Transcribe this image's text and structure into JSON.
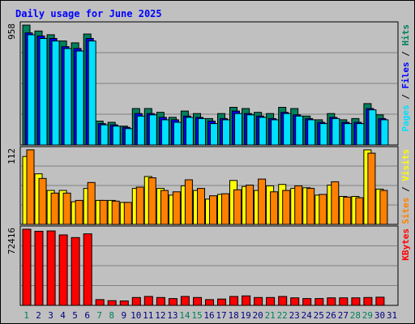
{
  "chart_data": {
    "type": "bar",
    "title": "Daily usage for June 2025",
    "categories": [
      "1",
      "2",
      "3",
      "4",
      "5",
      "6",
      "7",
      "8",
      "9",
      "10",
      "11",
      "12",
      "13",
      "14",
      "15",
      "16",
      "17",
      "18",
      "19",
      "20",
      "21",
      "22",
      "23",
      "24",
      "25",
      "26",
      "27",
      "28",
      "29",
      "30",
      "31"
    ],
    "weekend_days": [
      "1",
      "7",
      "8",
      "14",
      "15",
      "21",
      "22",
      "28",
      "29"
    ],
    "panels": [
      {
        "id": "hits-files-pages",
        "max_label": "958",
        "ylim": [
          0,
          958
        ],
        "side_label": [
          "Pages",
          "Files",
          "Hits"
        ],
        "series": [
          {
            "name": "Hits",
            "color": "#00805c",
            "values": [
              958,
              911,
              881,
              831,
              816,
              887,
              191,
              181,
              151,
              291,
              291,
              261,
              221,
              271,
              251,
              211,
              251,
              301,
              291,
              261,
              251,
              301,
              291,
              231,
              201,
              251,
              201,
              211,
              331,
              241,
              0
            ]
          },
          {
            "name": "Files",
            "color": "#0000ff",
            "values": [
              896,
              871,
              851,
              786,
              771,
              851,
              171,
              161,
              141,
              251,
              251,
              221,
              201,
              231,
              221,
              191,
              211,
              271,
              251,
              231,
              211,
              261,
              241,
              211,
              181,
              221,
              181,
              181,
              291,
              211,
              0
            ]
          },
          {
            "name": "Pages",
            "color": "#00e0ff",
            "values": [
              881,
              851,
              831,
              771,
              751,
              831,
              161,
              151,
              131,
              231,
              241,
              201,
              181,
              221,
              211,
              171,
              201,
              251,
              241,
              221,
              201,
              251,
              231,
              201,
              171,
              211,
              171,
              171,
              281,
              201,
              0
            ]
          }
        ]
      },
      {
        "id": "visits-sites",
        "max_label": "112",
        "ylim": [
          0,
          112
        ],
        "side_label": [
          "Sites",
          "Visits"
        ],
        "series": [
          {
            "name": "Visits",
            "color": "#ffff00",
            "values": [
              102,
              76,
              51,
              51,
              34,
              54,
              36,
              36,
              33,
              54,
              72,
              54,
              44,
              58,
              51,
              38,
              45,
              66,
              57,
              51,
              58,
              60,
              54,
              55,
              44,
              59,
              42,
              42,
              112,
              53,
              0
            ]
          },
          {
            "name": "Sites",
            "color": "#ff8000",
            "values": [
              112,
              69,
              47,
              47,
              36,
              63,
              36,
              35,
              33,
              56,
              70,
              51,
              49,
              67,
              54,
              43,
              46,
              52,
              59,
              68,
              49,
              51,
              58,
              54,
              45,
              64,
              41,
              40,
              107,
              51,
              0
            ]
          }
        ]
      },
      {
        "id": "kbytes",
        "max_label": "72416",
        "ylim": [
          0,
          72416
        ],
        "side_label": [
          "KBytes"
        ],
        "series": [
          {
            "name": "KBytes",
            "color": "#ff0000",
            "values": [
              72416,
              70500,
              70800,
              67000,
              64500,
              68000,
              5500,
              4500,
              4200,
              7500,
              8500,
              7500,
              6500,
              8500,
              7500,
              5500,
              6000,
              8500,
              9000,
              7500,
              7500,
              8500,
              7200,
              6500,
              6500,
              7200,
              7200,
              7200,
              7500,
              7800,
              0
            ]
          }
        ]
      }
    ],
    "colors": {
      "background": "#c0c0c0",
      "title": "#0000ff",
      "day_label": "#000080",
      "weekend_day_label": "#00805c",
      "grid": "#808080"
    }
  }
}
